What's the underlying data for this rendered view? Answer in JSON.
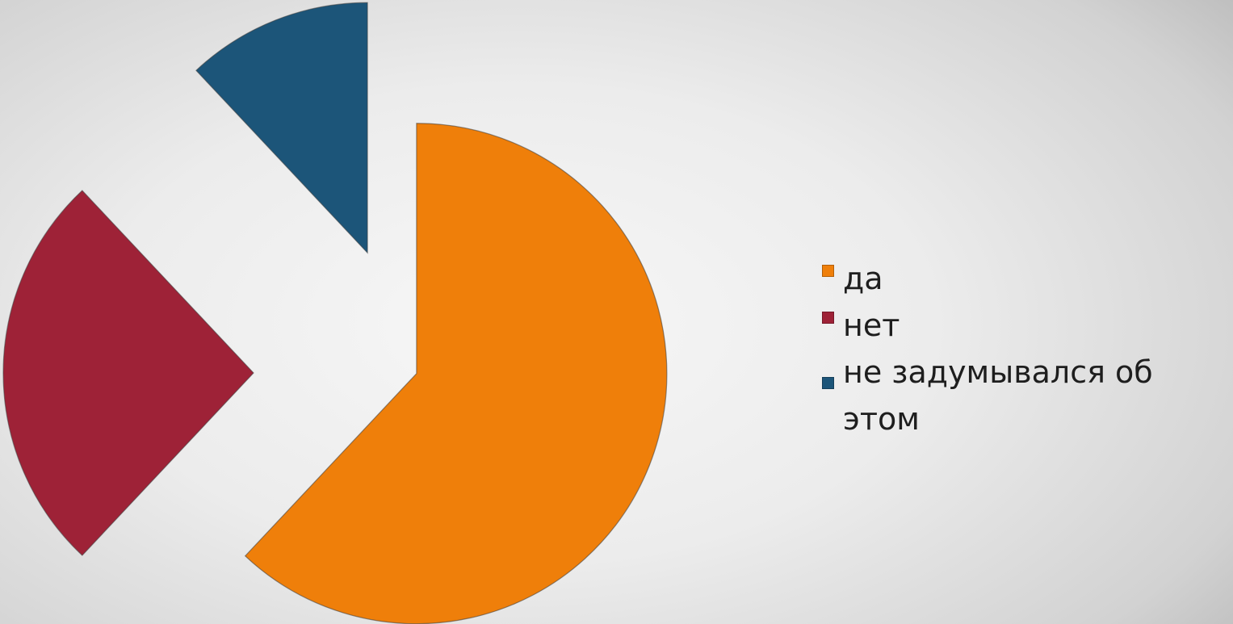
{
  "chart_data": {
    "type": "pie",
    "exploded": true,
    "title": "",
    "categories": [
      "да",
      "нет",
      "не задумывался об этом"
    ],
    "values": [
      62,
      26,
      12
    ],
    "unit": "%",
    "colors": [
      "#ef7f0a",
      "#9e2237",
      "#1c5579"
    ],
    "legend": {
      "position": "right",
      "entries": [
        {
          "label": "да",
          "color": "#ef7f0a"
        },
        {
          "label": "нет",
          "color": "#9e2237"
        },
        {
          "label": "не задумывался об этом",
          "color": "#1c5579"
        }
      ]
    }
  }
}
